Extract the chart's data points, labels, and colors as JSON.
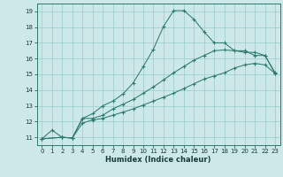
{
  "xlabel": "Humidex (Indice chaleur)",
  "bg_color": "#cce8e8",
  "line_color": "#2e7b6e",
  "grid_color": "#99cccc",
  "xlim": [
    -0.5,
    23.5
  ],
  "ylim": [
    10.5,
    19.5
  ],
  "xticks": [
    0,
    1,
    2,
    3,
    4,
    5,
    6,
    7,
    8,
    9,
    10,
    11,
    12,
    13,
    14,
    15,
    16,
    17,
    18,
    19,
    20,
    21,
    22,
    23
  ],
  "yticks": [
    11,
    12,
    13,
    14,
    15,
    16,
    17,
    18,
    19
  ],
  "line1_x": [
    0,
    1,
    2,
    3,
    4,
    5,
    6,
    7,
    8,
    9,
    10,
    11,
    12,
    13,
    14,
    15,
    16,
    17,
    18,
    19,
    20,
    21,
    22,
    23
  ],
  "line1_y": [
    10.9,
    11.45,
    11.0,
    10.95,
    12.2,
    12.5,
    13.0,
    13.3,
    13.75,
    14.45,
    15.5,
    16.6,
    18.05,
    19.05,
    19.05,
    18.5,
    17.7,
    17.0,
    17.0,
    16.5,
    16.5,
    16.2,
    16.2,
    15.05
  ],
  "line2_x": [
    0,
    2,
    3,
    4,
    5,
    6,
    7,
    8,
    9,
    10,
    11,
    12,
    13,
    14,
    15,
    16,
    17,
    18,
    19,
    20,
    21,
    22,
    23
  ],
  "line2_y": [
    10.9,
    11.0,
    10.95,
    12.2,
    12.2,
    12.4,
    12.8,
    13.1,
    13.4,
    13.8,
    14.2,
    14.65,
    15.1,
    15.5,
    15.9,
    16.2,
    16.5,
    16.55,
    16.5,
    16.4,
    16.4,
    16.2,
    15.1
  ],
  "line3_x": [
    0,
    2,
    3,
    4,
    5,
    6,
    7,
    8,
    9,
    10,
    11,
    12,
    13,
    14,
    15,
    16,
    17,
    18,
    19,
    20,
    21,
    22,
    23
  ],
  "line3_y": [
    10.9,
    11.0,
    10.95,
    11.9,
    12.1,
    12.2,
    12.4,
    12.6,
    12.8,
    13.05,
    13.3,
    13.55,
    13.8,
    14.1,
    14.4,
    14.7,
    14.9,
    15.1,
    15.4,
    15.6,
    15.7,
    15.6,
    15.05
  ]
}
